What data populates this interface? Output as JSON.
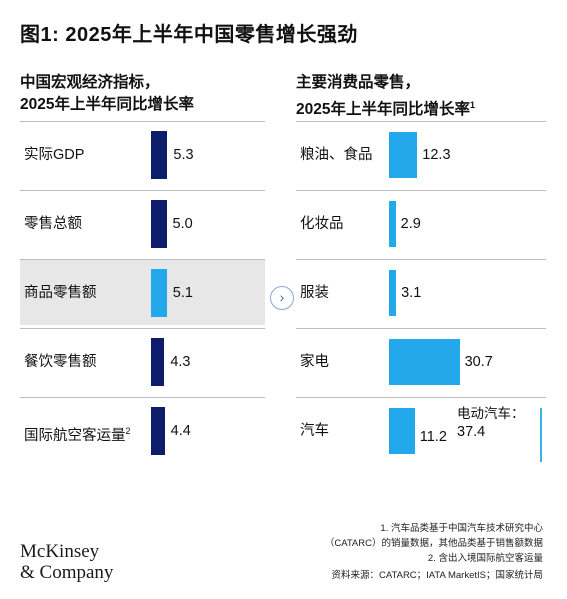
{
  "title": "图1: 2025年上半年中国零售增长强劲",
  "left_header": [
    "中国宏观经济指标，",
    "2025年上半年同比增长率"
  ],
  "right_header": [
    "主要消费品零售，",
    "2025年上半年同比增长率"
  ],
  "right_header_sup": "1",
  "colors": {
    "navy": "#0d1c6b",
    "cyan": "#23a8ec",
    "highlight": "#e7e7e7",
    "grid": "#bdbdbd"
  },
  "chart_data": [
    {
      "type": "bar",
      "orientation": "horizontal",
      "categories": [
        "实际GDP",
        "零售总额",
        "商品零售额",
        "餐饮零售额",
        "国际航空客运量"
      ],
      "category_sup": [
        "",
        "",
        "",
        "",
        "2"
      ],
      "values": [
        5.3,
        5.0,
        5.1,
        4.3,
        4.4
      ],
      "value_labels": [
        "5.3",
        "5.0",
        "5.1",
        "4.3",
        "4.4"
      ],
      "bar_colors": [
        "#0d1c6b",
        "#0d1c6b",
        "#23a8ec",
        "#0d1c6b",
        "#0d1c6b"
      ],
      "highlighted_category": "商品零售额"
    },
    {
      "type": "bar",
      "orientation": "horizontal",
      "categories": [
        "粮油、食品",
        "化妆品",
        "服装",
        "家电",
        "汽车"
      ],
      "values": [
        12.3,
        2.9,
        3.1,
        30.7,
        11.2
      ],
      "value_labels": [
        "12.3",
        "2.9",
        "3.1",
        "30.7",
        "11.2"
      ],
      "bar_color": "#23a8ec",
      "annotation": {
        "label": "电动汽车：",
        "value": 37.4,
        "value_label": "37.4"
      }
    }
  ],
  "arrow_icon": "chevron-right-icon",
  "logo": [
    "McKinsey",
    "& Company"
  ],
  "notes": [
    "1.  汽车品类基于中国汽车技术研究中心",
    "（CATARC）的销量数据，其他品类基于销售额数据",
    "2.  含出入境国际航空客运量"
  ],
  "source": "资料来源：CATARC；IATA MarketIS；国家统计局"
}
